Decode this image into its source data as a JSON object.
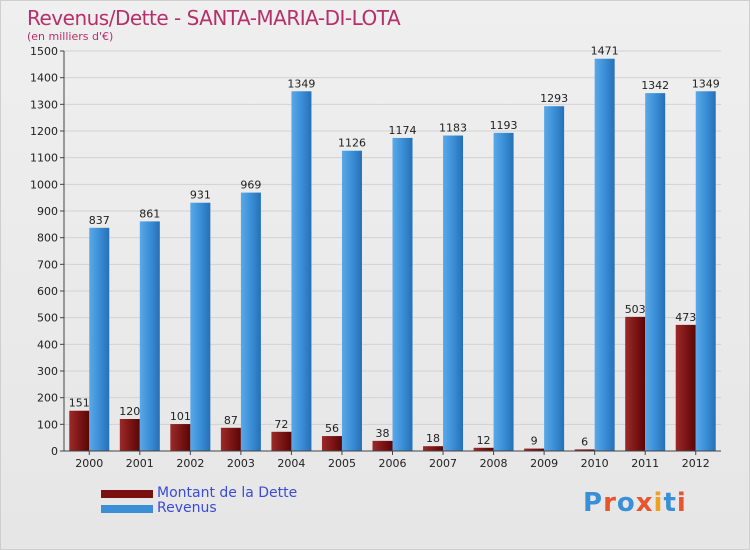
{
  "header": {
    "title": "Revenus/Dette - SANTA-MARIA-DI-LOTA",
    "subtitle": "(en milliers d'€)"
  },
  "colors": {
    "dette": "#7a1010",
    "revenus": "#3b8fd6",
    "title": "#b5306a"
  },
  "legend": {
    "dette_label": "Montant de la Dette",
    "revenus_label": "Revenus"
  },
  "logo": {
    "text": "Proxiti",
    "letter_colors": [
      "#3b8fd6",
      "#e8542c",
      "#3b8fd6",
      "#e8542c",
      "#f0a020",
      "#3b8fd6",
      "#e8542c"
    ]
  },
  "chart_data": {
    "type": "bar",
    "title": "Revenus/Dette - SANTA-MARIA-DI-LOTA",
    "ylabel": "(en milliers d'€)",
    "xlabel": "",
    "ylim": [
      0,
      1500
    ],
    "ytick_step": 100,
    "grid": true,
    "legend": "bottom-left",
    "categories": [
      "2000",
      "2001",
      "2002",
      "2003",
      "2004",
      "2005",
      "2006",
      "2007",
      "2008",
      "2009",
      "2010",
      "2011",
      "2012"
    ],
    "series": [
      {
        "name": "Montant de la Dette",
        "values": [
          151,
          120,
          101,
          87,
          72,
          56,
          38,
          18,
          12,
          9,
          6,
          503,
          473
        ]
      },
      {
        "name": "Revenus",
        "values": [
          837,
          861,
          931,
          969,
          1349,
          1126,
          1174,
          1183,
          1193,
          1293,
          1471,
          1342,
          1349
        ]
      }
    ]
  }
}
